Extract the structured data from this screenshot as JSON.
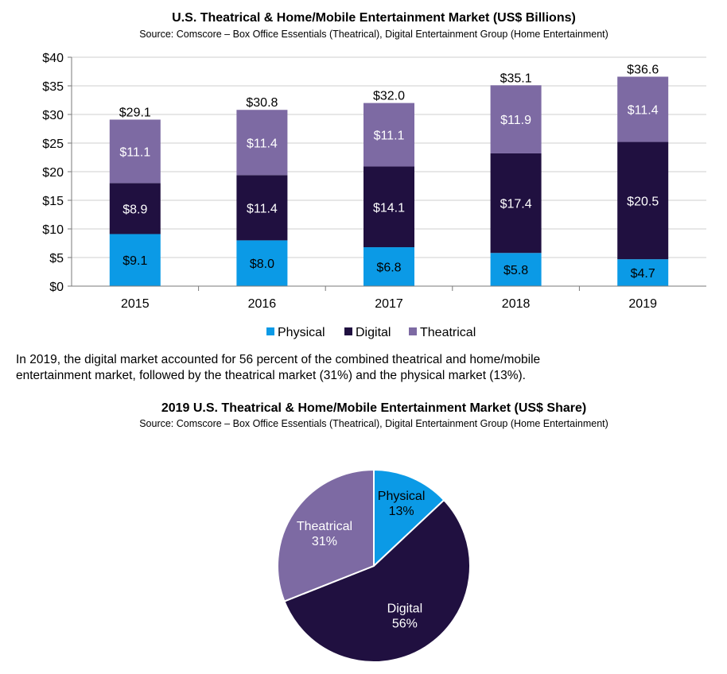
{
  "colors": {
    "physical": "#0b9ae6",
    "digital": "#201040",
    "theatrical": "#7d6aa3",
    "grid": "#cfcfcf",
    "axis": "#7a7a7a"
  },
  "paragraph": {
    "line1": "In 2019, the digital market accounted for 56 percent of the combined theatrical and home/mobile",
    "line2": "entertainment market, followed by the theatrical market (31%) and the physical market (13%)."
  },
  "chart_data": [
    {
      "type": "bar",
      "stacked": true,
      "title": "U.S. Theatrical & Home/Mobile Entertainment Market (US$ Billions)",
      "subtitle": "Source: Comscore – Box Office Essentials (Theatrical), Digital Entertainment Group (Home Entertainment)",
      "categories": [
        "2015",
        "2016",
        "2017",
        "2018",
        "2019"
      ],
      "series": [
        {
          "name": "Physical",
          "values": [
            9.1,
            8.0,
            6.8,
            5.8,
            4.7
          ],
          "labels": [
            "$9.1",
            "$8.0",
            "$6.8",
            "$5.8",
            "$4.7"
          ]
        },
        {
          "name": "Digital",
          "values": [
            8.9,
            11.4,
            14.1,
            17.4,
            20.5
          ],
          "labels": [
            "$8.9",
            "$11.4",
            "$14.1",
            "$17.4",
            "$20.5"
          ]
        },
        {
          "name": "Theatrical",
          "values": [
            11.1,
            11.4,
            11.1,
            11.9,
            11.4
          ],
          "labels": [
            "$11.1",
            "$11.4",
            "$11.1",
            "$11.9",
            "$11.4"
          ]
        }
      ],
      "totals": [
        29.1,
        30.8,
        32.0,
        35.1,
        36.6
      ],
      "total_labels": [
        "$29.1",
        "$30.8",
        "$32.0",
        "$35.1",
        "$36.6"
      ],
      "ylim": [
        0,
        40
      ],
      "yticks": [
        0,
        5,
        10,
        15,
        20,
        25,
        30,
        35,
        40
      ],
      "ytick_labels": [
        "$0",
        "$5",
        "$10",
        "$15",
        "$20",
        "$25",
        "$30",
        "$35",
        "$40"
      ],
      "grid": true,
      "legend": "bottom"
    },
    {
      "type": "pie",
      "title": "2019 U.S. Theatrical & Home/Mobile Entertainment Market (US$ Share)",
      "subtitle": "Source: Comscore – Box Office Essentials (Theatrical), Digital Entertainment Group (Home Entertainment)",
      "slices": [
        {
          "name": "Physical",
          "value": 13,
          "label": "13%"
        },
        {
          "name": "Digital",
          "value": 56,
          "label": "56%"
        },
        {
          "name": "Theatrical",
          "value": 31,
          "label": "31%"
        }
      ]
    }
  ]
}
